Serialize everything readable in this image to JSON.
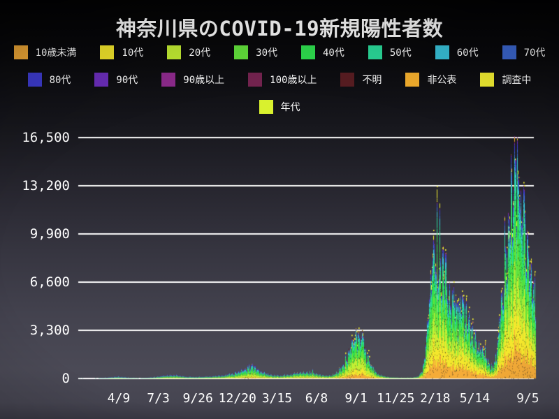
{
  "title": "神奈川県のCOVID-19新規陽性者数",
  "legend": {
    "rows": [
      [
        {
          "label": "10歳未満",
          "color": "#F5AC38"
        },
        {
          "label": "10代",
          "color": "#F4E72C"
        },
        {
          "label": "20代",
          "color": "#C3EE33"
        },
        {
          "label": "30代",
          "color": "#63E23C"
        },
        {
          "label": "40代",
          "color": "#2FE04F"
        },
        {
          "label": "50代",
          "color": "#2BDC9B"
        },
        {
          "label": "60代",
          "color": "#39C4DC"
        },
        {
          "label": "70代",
          "color": "#3C68D2"
        }
      ],
      [
        {
          "label": "80代",
          "color": "#3E3CCF"
        },
        {
          "label": "90代",
          "color": "#6C2EBC"
        },
        {
          "label": "90歳以上",
          "color": "#8F2B8E"
        },
        {
          "label": "100歳以上",
          "color": "#752450"
        },
        {
          "label": "不明",
          "color": "#581D22"
        },
        {
          "label": "非公表",
          "color": "#F6B02E"
        },
        {
          "label": "調査中",
          "color": "#F5F132"
        }
      ],
      [
        {
          "label": "年代",
          "color": "#D9F12E"
        }
      ]
    ]
  },
  "chart_data": {
    "type": "area",
    "stacked": true,
    "title": "神奈川県のCOVID-19新規陽性者数",
    "xlabel": "",
    "ylabel": "",
    "grid": true,
    "grid_color": "#ffffff",
    "legend_position": "top",
    "ylim": [
      0,
      16500
    ],
    "y_ticks": [
      0,
      3300,
      6600,
      9900,
      13200,
      16500
    ],
    "y_tick_labels": [
      "0",
      "3,300",
      "6,600",
      "9,900",
      "13,200",
      "16,500"
    ],
    "x_tick_labels": [
      "4/9",
      "7/3",
      "9/26",
      "12/20",
      "3/15",
      "6/8",
      "9/1",
      "11/25",
      "2/18",
      "5/14",
      "9/5"
    ],
    "x_tick_days": [
      87,
      172,
      257,
      342,
      427,
      512,
      597,
      682,
      767,
      852,
      966
    ],
    "x_range_days": [
      0,
      982
    ],
    "series": [
      {
        "name": "10歳未満",
        "color": "#F5AC38"
      },
      {
        "name": "10代",
        "color": "#F4E72C"
      },
      {
        "name": "20代",
        "color": "#C3EE33"
      },
      {
        "name": "30代",
        "color": "#63E23C"
      },
      {
        "name": "40代",
        "color": "#2FE04F"
      },
      {
        "name": "50代",
        "color": "#2BDC9B"
      },
      {
        "name": "60代",
        "color": "#39C4DC"
      },
      {
        "name": "70代",
        "color": "#3C68D2"
      },
      {
        "name": "80代",
        "color": "#3E3CCF"
      },
      {
        "name": "90代",
        "color": "#6C2EBC"
      },
      {
        "name": "90歳以上",
        "color": "#8F2B8E"
      },
      {
        "name": "100歳以上",
        "color": "#752450"
      },
      {
        "name": "不明",
        "color": "#581D22"
      },
      {
        "name": "非公表",
        "color": "#F6B02E"
      },
      {
        "name": "調査中",
        "color": "#F5F132"
      }
    ],
    "total_curve_day_value": [
      [
        0,
        0
      ],
      [
        27,
        20
      ],
      [
        57,
        60
      ],
      [
        87,
        120
      ],
      [
        110,
        60
      ],
      [
        132,
        40
      ],
      [
        155,
        70
      ],
      [
        185,
        190
      ],
      [
        204,
        240
      ],
      [
        230,
        120
      ],
      [
        252,
        100
      ],
      [
        282,
        130
      ],
      [
        312,
        210
      ],
      [
        335,
        360
      ],
      [
        357,
        620
      ],
      [
        372,
        930
      ],
      [
        387,
        520
      ],
      [
        410,
        260
      ],
      [
        432,
        180
      ],
      [
        455,
        260
      ],
      [
        477,
        430
      ],
      [
        500,
        390
      ],
      [
        522,
        210
      ],
      [
        540,
        180
      ],
      [
        552,
        310
      ],
      [
        567,
        820
      ],
      [
        578,
        1500
      ],
      [
        590,
        2550
      ],
      [
        599,
        2900
      ],
      [
        610,
        2400
      ],
      [
        620,
        1500
      ],
      [
        631,
        700
      ],
      [
        643,
        300
      ],
      [
        658,
        130
      ],
      [
        672,
        70
      ],
      [
        695,
        45
      ],
      [
        718,
        55
      ],
      [
        730,
        130
      ],
      [
        737,
        420
      ],
      [
        745,
        1600
      ],
      [
        752,
        4600
      ],
      [
        760,
        7600
      ],
      [
        766,
        8350
      ],
      [
        773,
        7900
      ],
      [
        781,
        7000
      ],
      [
        788,
        6900
      ],
      [
        794,
        6000
      ],
      [
        802,
        5300
      ],
      [
        808,
        5500
      ],
      [
        814,
        5100
      ],
      [
        820,
        5600
      ],
      [
        826,
        4800
      ],
      [
        832,
        4200
      ],
      [
        838,
        3900
      ],
      [
        844,
        3400
      ],
      [
        850,
        2800
      ],
      [
        856,
        2400
      ],
      [
        862,
        2200
      ],
      [
        868,
        1900
      ],
      [
        874,
        1700
      ],
      [
        880,
        1100
      ],
      [
        886,
        800
      ],
      [
        892,
        900
      ],
      [
        898,
        1700
      ],
      [
        904,
        3400
      ],
      [
        910,
        5400
      ],
      [
        916,
        7000
      ],
      [
        922,
        9000
      ],
      [
        928,
        11000
      ],
      [
        934,
        13600
      ],
      [
        940,
        15900
      ],
      [
        943,
        14500
      ],
      [
        948,
        12300
      ],
      [
        952,
        11000
      ],
      [
        957,
        10700
      ],
      [
        961,
        10200
      ],
      [
        966,
        8500
      ],
      [
        970,
        7300
      ],
      [
        975,
        6300
      ],
      [
        979,
        5900
      ],
      [
        982,
        5700
      ]
    ],
    "age_fraction_anchors": [
      {
        "day": 0,
        "f": [
          0.02,
          0.03,
          0.14,
          0.13,
          0.13,
          0.13,
          0.12,
          0.11,
          0.09,
          0.05,
          0.02,
          0.006,
          0.02,
          0.004,
          0.01
        ]
      },
      {
        "day": 320,
        "f": [
          0.05,
          0.07,
          0.2,
          0.16,
          0.15,
          0.12,
          0.09,
          0.07,
          0.045,
          0.022,
          0.009,
          0.002,
          0.006,
          0.004,
          0.01
        ]
      },
      {
        "day": 590,
        "f": [
          0.09,
          0.12,
          0.24,
          0.18,
          0.16,
          0.1,
          0.05,
          0.025,
          0.012,
          0.006,
          0.003,
          0.001,
          0.003,
          0.004,
          0.016
        ]
      },
      {
        "day": 770,
        "f": [
          0.14,
          0.17,
          0.15,
          0.16,
          0.15,
          0.1,
          0.05,
          0.03,
          0.02,
          0.008,
          0.004,
          0.001,
          0.002,
          0.005,
          0.02
        ]
      },
      {
        "day": 982,
        "f": [
          0.15,
          0.17,
          0.14,
          0.16,
          0.15,
          0.1,
          0.05,
          0.03,
          0.02,
          0.009,
          0.004,
          0.001,
          0.002,
          0.005,
          0.015
        ]
      }
    ],
    "noise": {
      "seed": 42,
      "weekly_amp": 0.16,
      "second_amp": 0.13,
      "random_amp": 0.3,
      "spike_prob": 0.05,
      "spike_amp": 0.35
    }
  }
}
